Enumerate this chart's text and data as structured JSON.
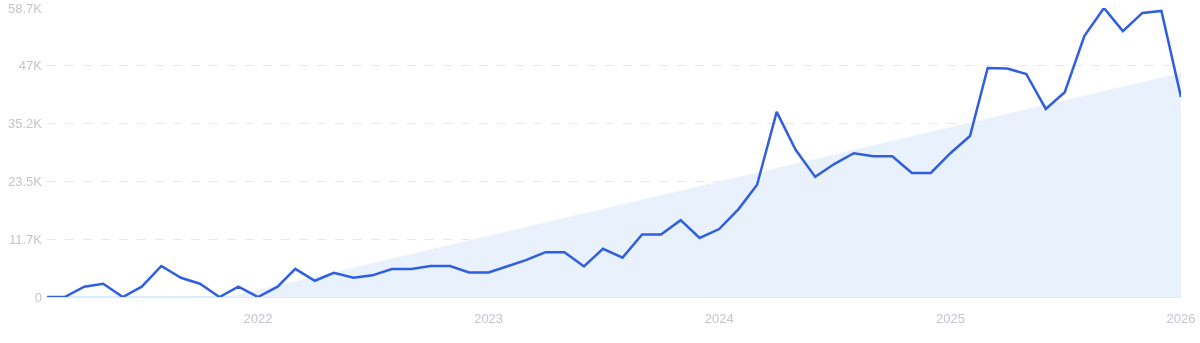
{
  "chart_data": {
    "type": "line",
    "x": [
      "2021-02",
      "2021-03",
      "2021-04",
      "2021-05",
      "2021-06",
      "2021-07",
      "2021-08",
      "2021-09",
      "2021-10",
      "2021-11",
      "2021-12",
      "2022-01",
      "2022-02",
      "2022-03",
      "2022-04",
      "2022-05",
      "2022-06",
      "2022-07",
      "2022-08",
      "2022-09",
      "2022-10",
      "2022-11",
      "2022-12",
      "2023-01",
      "2023-02",
      "2023-03",
      "2023-04",
      "2023-05",
      "2023-06",
      "2023-07",
      "2023-08",
      "2023-09",
      "2023-10",
      "2023-11",
      "2023-12",
      "2024-01",
      "2024-02",
      "2024-03",
      "2024-04",
      "2024-05",
      "2024-06",
      "2024-07",
      "2024-08",
      "2024-09",
      "2024-10",
      "2024-11",
      "2024-12",
      "2025-01",
      "2025-02",
      "2025-03",
      "2025-04",
      "2025-05",
      "2025-06",
      "2025-07",
      "2025-08",
      "2025-09",
      "2025-10",
      "2025-11",
      "2025-12",
      "2026-01"
    ],
    "series": [
      {
        "type": "area",
        "color": "#e9f1fc",
        "x": [
          "2021-11-15",
          "2026-01"
        ],
        "values": [
          0,
          45500
        ]
      },
      {
        "color": "#2f5fe0",
        "values": [
          0,
          0,
          2100,
          2700,
          0,
          2100,
          6300,
          3900,
          2700,
          0,
          2100,
          0,
          2100,
          5700,
          3300,
          4900,
          3900,
          4400,
          5700,
          5700,
          6300,
          6300,
          5000,
          5000,
          6300,
          7500,
          9100,
          9100,
          6200,
          9800,
          8000,
          12700,
          12700,
          15600,
          12000,
          13800,
          17900,
          22800,
          37600,
          29900,
          24400,
          27000,
          29200,
          28600,
          28600,
          25200,
          25200,
          29200,
          32700,
          46500,
          46400,
          45300,
          38200,
          41600,
          53000,
          58700,
          54000,
          57700,
          58100,
          40600
        ]
      }
    ],
    "xlim": [
      "2021-02",
      "2026-01"
    ],
    "xticks": [
      "2022",
      "2023",
      "2024",
      "2025",
      "2026"
    ],
    "ylim": [
      0,
      58700
    ],
    "yticks": [
      0,
      {
        "value": 11700,
        "label": "11.7K"
      },
      {
        "value": 23500,
        "label": "23.5K"
      },
      {
        "value": 35200,
        "label": "35.2K"
      },
      {
        "value": 47000,
        "label": "47K"
      },
      {
        "value": 58700,
        "label": "58.7K"
      }
    ],
    "grid": "y",
    "marker": "none",
    "line_style": "solid"
  }
}
